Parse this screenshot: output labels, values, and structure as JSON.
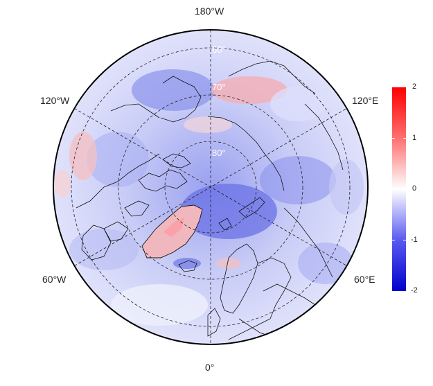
{
  "map": {
    "projection": "north-polar-stereographic",
    "meridian_labels": {
      "top": "180°W",
      "upper_left": "120°W",
      "upper_right": "120°E",
      "lower_left": "60°W",
      "lower_right": "60°E",
      "bottom": "0°"
    },
    "parallel_labels": [
      "80°",
      "70°",
      "60°"
    ],
    "field_description_colors": {
      "negative": "#0000cc",
      "neutral": "#ffffff",
      "positive": "#ff0000"
    }
  },
  "colorbar": {
    "ticks": [
      "2",
      "1",
      "0",
      "-1",
      "-2"
    ],
    "min": -2,
    "max": 2,
    "colors": [
      "#0000cc",
      "#5a5af0",
      "#ffffff",
      "#ff7070",
      "#ff0000"
    ]
  }
}
